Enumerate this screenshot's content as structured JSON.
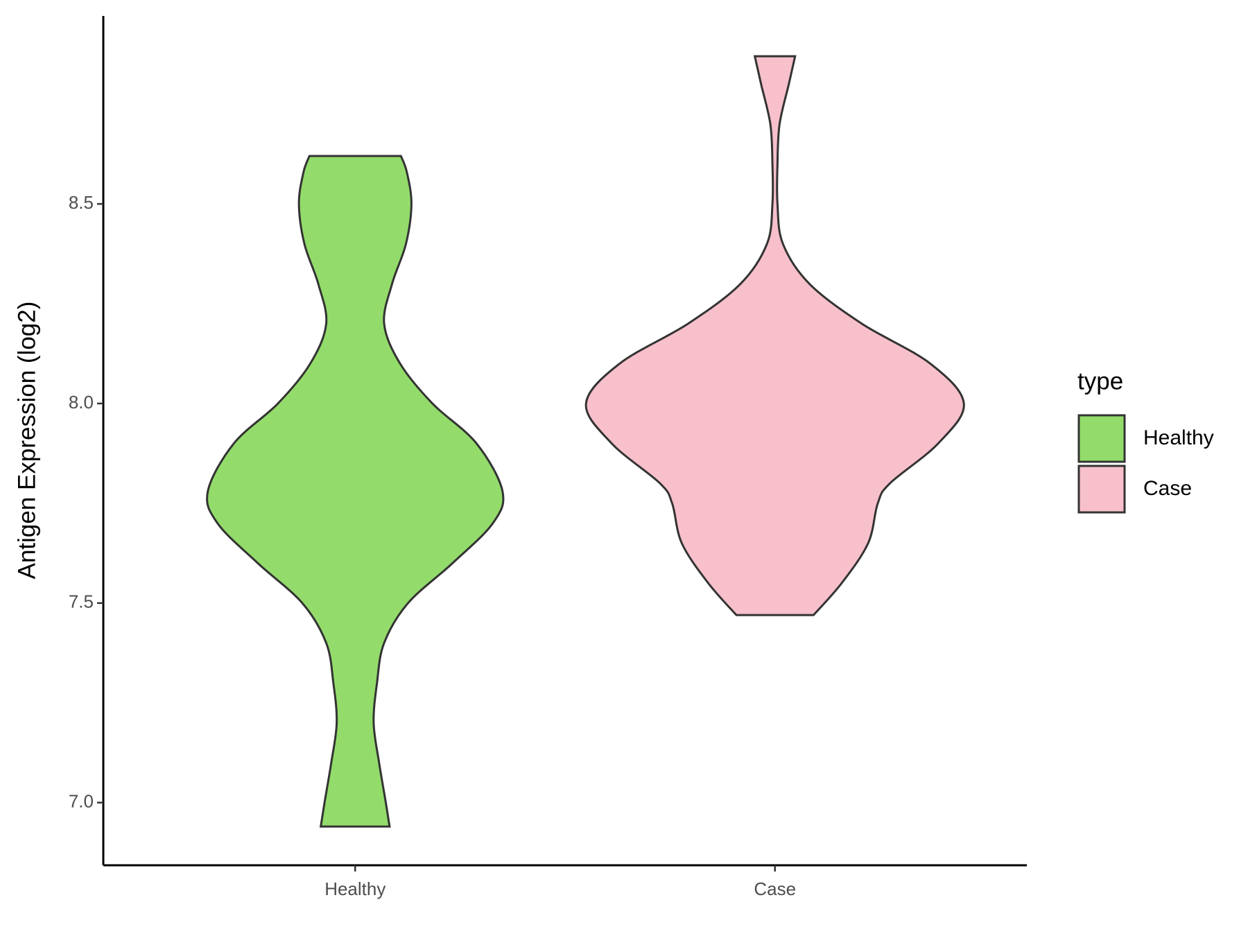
{
  "chart_data": {
    "type": "violin",
    "y_label": "Antigen Expression (log2)",
    "categories": [
      "Healthy",
      "Case"
    ],
    "xlim": [
      0.4,
      2.6
    ],
    "ylim": [
      6.843,
      8.971
    ],
    "yticks": [
      {
        "value": 7,
        "label": "7.0"
      },
      {
        "value": 7.5,
        "label": "7.5"
      },
      {
        "value": 8,
        "label": "8.0"
      },
      {
        "value": 8.5,
        "label": "8.5"
      }
    ],
    "legend_title": "type",
    "legend": "right",
    "series": [
      {
        "name": "Healthy",
        "color": "#93dc6b",
        "y": [
          6.94,
          7.0,
          7.1,
          7.2,
          7.3,
          7.4,
          7.5,
          7.6,
          7.7,
          7.78,
          7.9,
          8.0,
          8.1,
          8.2,
          8.3,
          8.4,
          8.5,
          8.58,
          8.62
        ],
        "width": [
          0.082,
          0.073,
          0.057,
          0.044,
          0.052,
          0.069,
          0.126,
          0.232,
          0.328,
          0.351,
          0.289,
          0.184,
          0.107,
          0.069,
          0.088,
          0.121,
          0.134,
          0.123,
          0.109
        ]
      },
      {
        "name": "Case",
        "color": "#f7c0cb",
        "y": [
          7.47,
          7.55,
          7.65,
          7.75,
          7.8,
          7.9,
          8.0,
          8.1,
          8.2,
          8.3,
          8.4,
          8.5,
          8.6,
          8.7,
          8.8,
          8.87
        ],
        "width": [
          0.092,
          0.159,
          0.222,
          0.245,
          0.274,
          0.389,
          0.45,
          0.37,
          0.207,
          0.082,
          0.019,
          0.006,
          0.006,
          0.011,
          0.033,
          0.048
        ]
      }
    ]
  }
}
